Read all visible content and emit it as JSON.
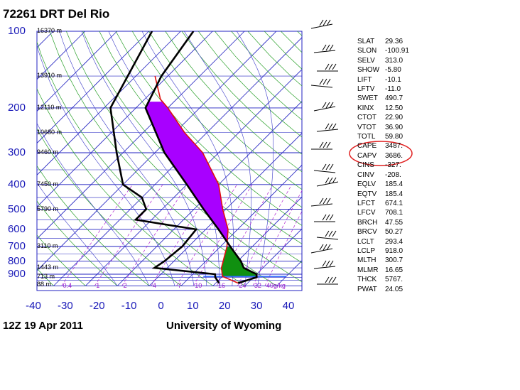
{
  "header": {
    "station_title": "72261 DRT Del Rio"
  },
  "footer": {
    "date_label": "12Z 19 Apr 2011",
    "source_label": "University of Wyoming"
  },
  "pressure_labels": [
    "100",
    "200",
    "300",
    "400",
    "500",
    "600",
    "700",
    "800",
    "900"
  ],
  "temperature_labels": [
    "-40",
    "-30",
    "-20",
    "-10",
    "0",
    "10",
    "20",
    "30",
    "40"
  ],
  "height_labels": [
    "16370 m",
    "13910 m",
    "12110 m",
    "10680 m",
    "9460 m",
    "7450 m",
    "5790 m",
    "3110 m",
    "1443 m",
    "713 m",
    "88 m"
  ],
  "mixing_ratio_labels": [
    "0.4",
    "1",
    "2",
    "4",
    "7",
    "10",
    "16",
    "24",
    "32",
    "40g/kg"
  ],
  "indices": [
    {
      "name": "SLAT",
      "value": "29.36"
    },
    {
      "name": "SLON",
      "value": "-100.91"
    },
    {
      "name": "SELV",
      "value": "313.0"
    },
    {
      "name": "SHOW",
      "value": "-5.80"
    },
    {
      "name": "LIFT",
      "value": "-10.1"
    },
    {
      "name": "LFTV",
      "value": "-11.0"
    },
    {
      "name": "SWET",
      "value": "490.7"
    },
    {
      "name": "KINX",
      "value": "12.50"
    },
    {
      "name": "CTOT",
      "value": "22.90"
    },
    {
      "name": "VTOT",
      "value": "36.90"
    },
    {
      "name": "TOTL",
      "value": "59.80"
    },
    {
      "name": "CAPE",
      "value": "3487."
    },
    {
      "name": "CAPV",
      "value": "3686."
    },
    {
      "name": "CINS",
      "value": "-327."
    },
    {
      "name": "CINV",
      "value": "-208."
    },
    {
      "name": "EQLV",
      "value": "185.4"
    },
    {
      "name": "EQTV",
      "value": "185.4"
    },
    {
      "name": "LFCT",
      "value": "674.1"
    },
    {
      "name": "LFCV",
      "value": "708.1"
    },
    {
      "name": "BRCH",
      "value": "47.55"
    },
    {
      "name": "BRCV",
      "value": "50.27"
    },
    {
      "name": "LCLT",
      "value": "293.4"
    },
    {
      "name": "LCLP",
      "value": "918.0"
    },
    {
      "name": "MLTH",
      "value": "300.7"
    },
    {
      "name": "MLMR",
      "value": "16.65"
    },
    {
      "name": "THCK",
      "value": "5767."
    },
    {
      "name": "PWAT",
      "value": "24.05"
    }
  ],
  "colors": {
    "isobar": "#2020c0",
    "isotherm": "#2020c0",
    "dry_adiabat": "#2aa02a",
    "moist_adiabat": "#3a3ac8",
    "mixing_ratio": "#b020d0",
    "temperature": "#000000",
    "dewpoint": "#000000",
    "parcel": "#e01010",
    "cape": "#a800ff",
    "cin": "#109010",
    "highlight": "#e02020"
  },
  "chart_data": {
    "type": "skew-t",
    "xlabel": "",
    "ylabel": "",
    "pressure_levels_hpa": [
      100,
      200,
      300,
      400,
      500,
      600,
      700,
      800,
      900
    ],
    "temperature_ticks_c": [
      -40,
      -30,
      -20,
      -10,
      0,
      10,
      20,
      30,
      40
    ],
    "xlim_c": [
      -40,
      45
    ],
    "ylim_hpa": [
      1000,
      100
    ],
    "temperature_profile": [
      {
        "p": 975,
        "t": 27
      },
      {
        "p": 925,
        "t": 31
      },
      {
        "p": 900,
        "t": 30
      },
      {
        "p": 850,
        "t": 24
      },
      {
        "p": 800,
        "t": 21
      },
      {
        "p": 700,
        "t": 13
      },
      {
        "p": 600,
        "t": 4
      },
      {
        "p": 500,
        "t": -7
      },
      {
        "p": 400,
        "t": -20
      },
      {
        "p": 300,
        "t": -37
      },
      {
        "p": 250,
        "t": -46
      },
      {
        "p": 200,
        "t": -57
      },
      {
        "p": 150,
        "t": -62
      },
      {
        "p": 100,
        "t": -66
      }
    ],
    "dewpoint_profile": [
      {
        "p": 975,
        "t": 21
      },
      {
        "p": 925,
        "t": 18
      },
      {
        "p": 900,
        "t": 17
      },
      {
        "p": 850,
        "t": -4
      },
      {
        "p": 800,
        "t": -3
      },
      {
        "p": 700,
        "t": -2
      },
      {
        "p": 600,
        "t": -3
      },
      {
        "p": 550,
        "t": -25
      },
      {
        "p": 500,
        "t": -25
      },
      {
        "p": 450,
        "t": -30
      },
      {
        "p": 400,
        "t": -40
      },
      {
        "p": 300,
        "t": -52
      },
      {
        "p": 200,
        "t": -68
      },
      {
        "p": 100,
        "t": -79
      }
    ],
    "parcel_profile": [
      {
        "p": 975,
        "t": 27
      },
      {
        "p": 918,
        "t": 20
      },
      {
        "p": 850,
        "t": 17
      },
      {
        "p": 700,
        "t": 12
      },
      {
        "p": 600,
        "t": 7
      },
      {
        "p": 500,
        "t": -1
      },
      {
        "p": 400,
        "t": -10
      },
      {
        "p": 300,
        "t": -25
      },
      {
        "p": 250,
        "t": -37
      },
      {
        "p": 200,
        "t": -50
      },
      {
        "p": 185,
        "t": -55
      },
      {
        "p": 150,
        "t": -64
      }
    ],
    "cape_area_hpa": [
      674,
      185
    ],
    "cin_area_hpa": [
      918,
      700
    ],
    "lcl_hpa": 918.0
  }
}
